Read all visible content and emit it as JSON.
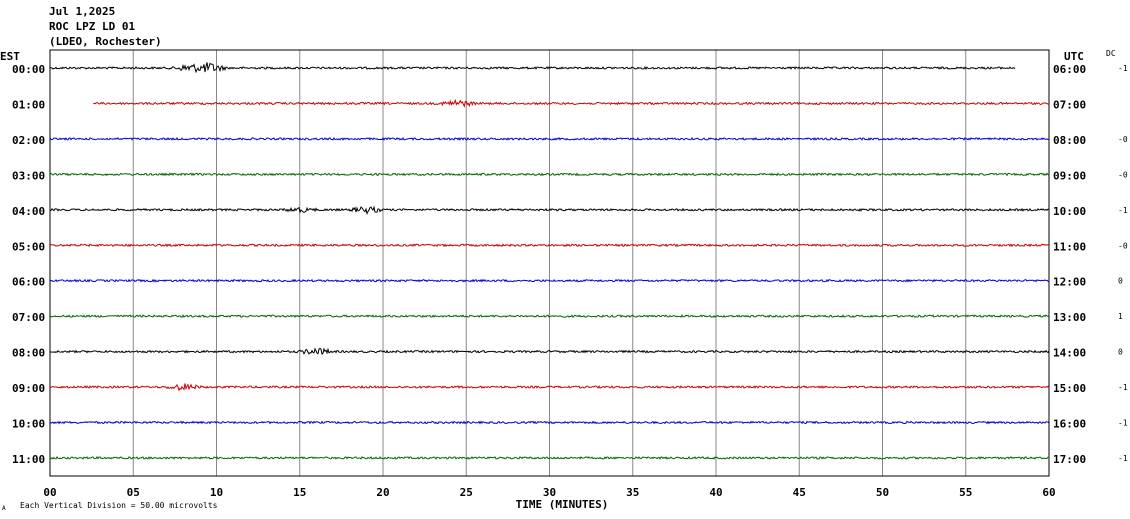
{
  "header": {
    "date": "Jul 1,2025",
    "station": "ROC LPZ LD 01",
    "network": "(LDEO, Rochester)"
  },
  "chart_data": {
    "type": "line",
    "left_zone": "EST",
    "right_zone": "UTC",
    "dc_label": "DC",
    "xlabel": "TIME (MINUTES)",
    "xlim": [
      0,
      60
    ],
    "x_ticks": [
      "00",
      "05",
      "10",
      "15",
      "20",
      "25",
      "30",
      "35",
      "40",
      "45",
      "50",
      "55",
      "60"
    ],
    "grid": true,
    "scale_note": "Each Vertical Division =   50.00 microvolts",
    "corner_mark": "A",
    "colors": [
      "#000000",
      "#cc0000",
      "#0000cc",
      "#006600"
    ],
    "traces": [
      {
        "est": "00:00",
        "utc": "06:00",
        "dc": "-1",
        "color": "#000000",
        "start_min": 0,
        "end_min": 58,
        "events": [
          {
            "at_min": 9.5,
            "amp": 5
          },
          {
            "at_min": 8.5,
            "amp": 4
          }
        ]
      },
      {
        "est": "01:00",
        "utc": "07:00",
        "dc": "",
        "color": "#cc0000",
        "start_min": 2.6,
        "end_min": 60,
        "events": [
          {
            "at_min": 24.5,
            "amp": 3
          }
        ]
      },
      {
        "est": "02:00",
        "utc": "08:00",
        "dc": "-0",
        "color": "#0000cc",
        "start_min": 0,
        "end_min": 60,
        "events": []
      },
      {
        "est": "03:00",
        "utc": "09:00",
        "dc": "-0",
        "color": "#006600",
        "start_min": 0,
        "end_min": 60,
        "events": []
      },
      {
        "est": "04:00",
        "utc": "10:00",
        "dc": "-1",
        "color": "#000000",
        "start_min": 0,
        "end_min": 60,
        "events": [
          {
            "at_min": 15,
            "amp": 2
          },
          {
            "at_min": 19,
            "amp": 3
          }
        ]
      },
      {
        "est": "05:00",
        "utc": "11:00",
        "dc": "-0",
        "color": "#cc0000",
        "start_min": 0,
        "end_min": 60,
        "events": []
      },
      {
        "est": "06:00",
        "utc": "12:00",
        "dc": "0",
        "color": "#0000cc",
        "start_min": 0,
        "end_min": 60,
        "events": []
      },
      {
        "est": "07:00",
        "utc": "13:00",
        "dc": "1",
        "color": "#006600",
        "start_min": 0,
        "end_min": 60,
        "events": []
      },
      {
        "est": "08:00",
        "utc": "14:00",
        "dc": "0",
        "color": "#000000",
        "start_min": 0,
        "end_min": 60,
        "events": [
          {
            "at_min": 16,
            "amp": 3
          }
        ]
      },
      {
        "est": "09:00",
        "utc": "15:00",
        "dc": "-1",
        "color": "#cc0000",
        "start_min": 0,
        "end_min": 60,
        "events": [
          {
            "at_min": 8,
            "amp": 3
          }
        ]
      },
      {
        "est": "10:00",
        "utc": "16:00",
        "dc": "-1",
        "color": "#0000cc",
        "start_min": 0,
        "end_min": 60,
        "events": []
      },
      {
        "est": "11:00",
        "utc": "17:00",
        "dc": "-1",
        "color": "#006600",
        "start_min": 0,
        "end_min": 60,
        "events": []
      }
    ]
  }
}
